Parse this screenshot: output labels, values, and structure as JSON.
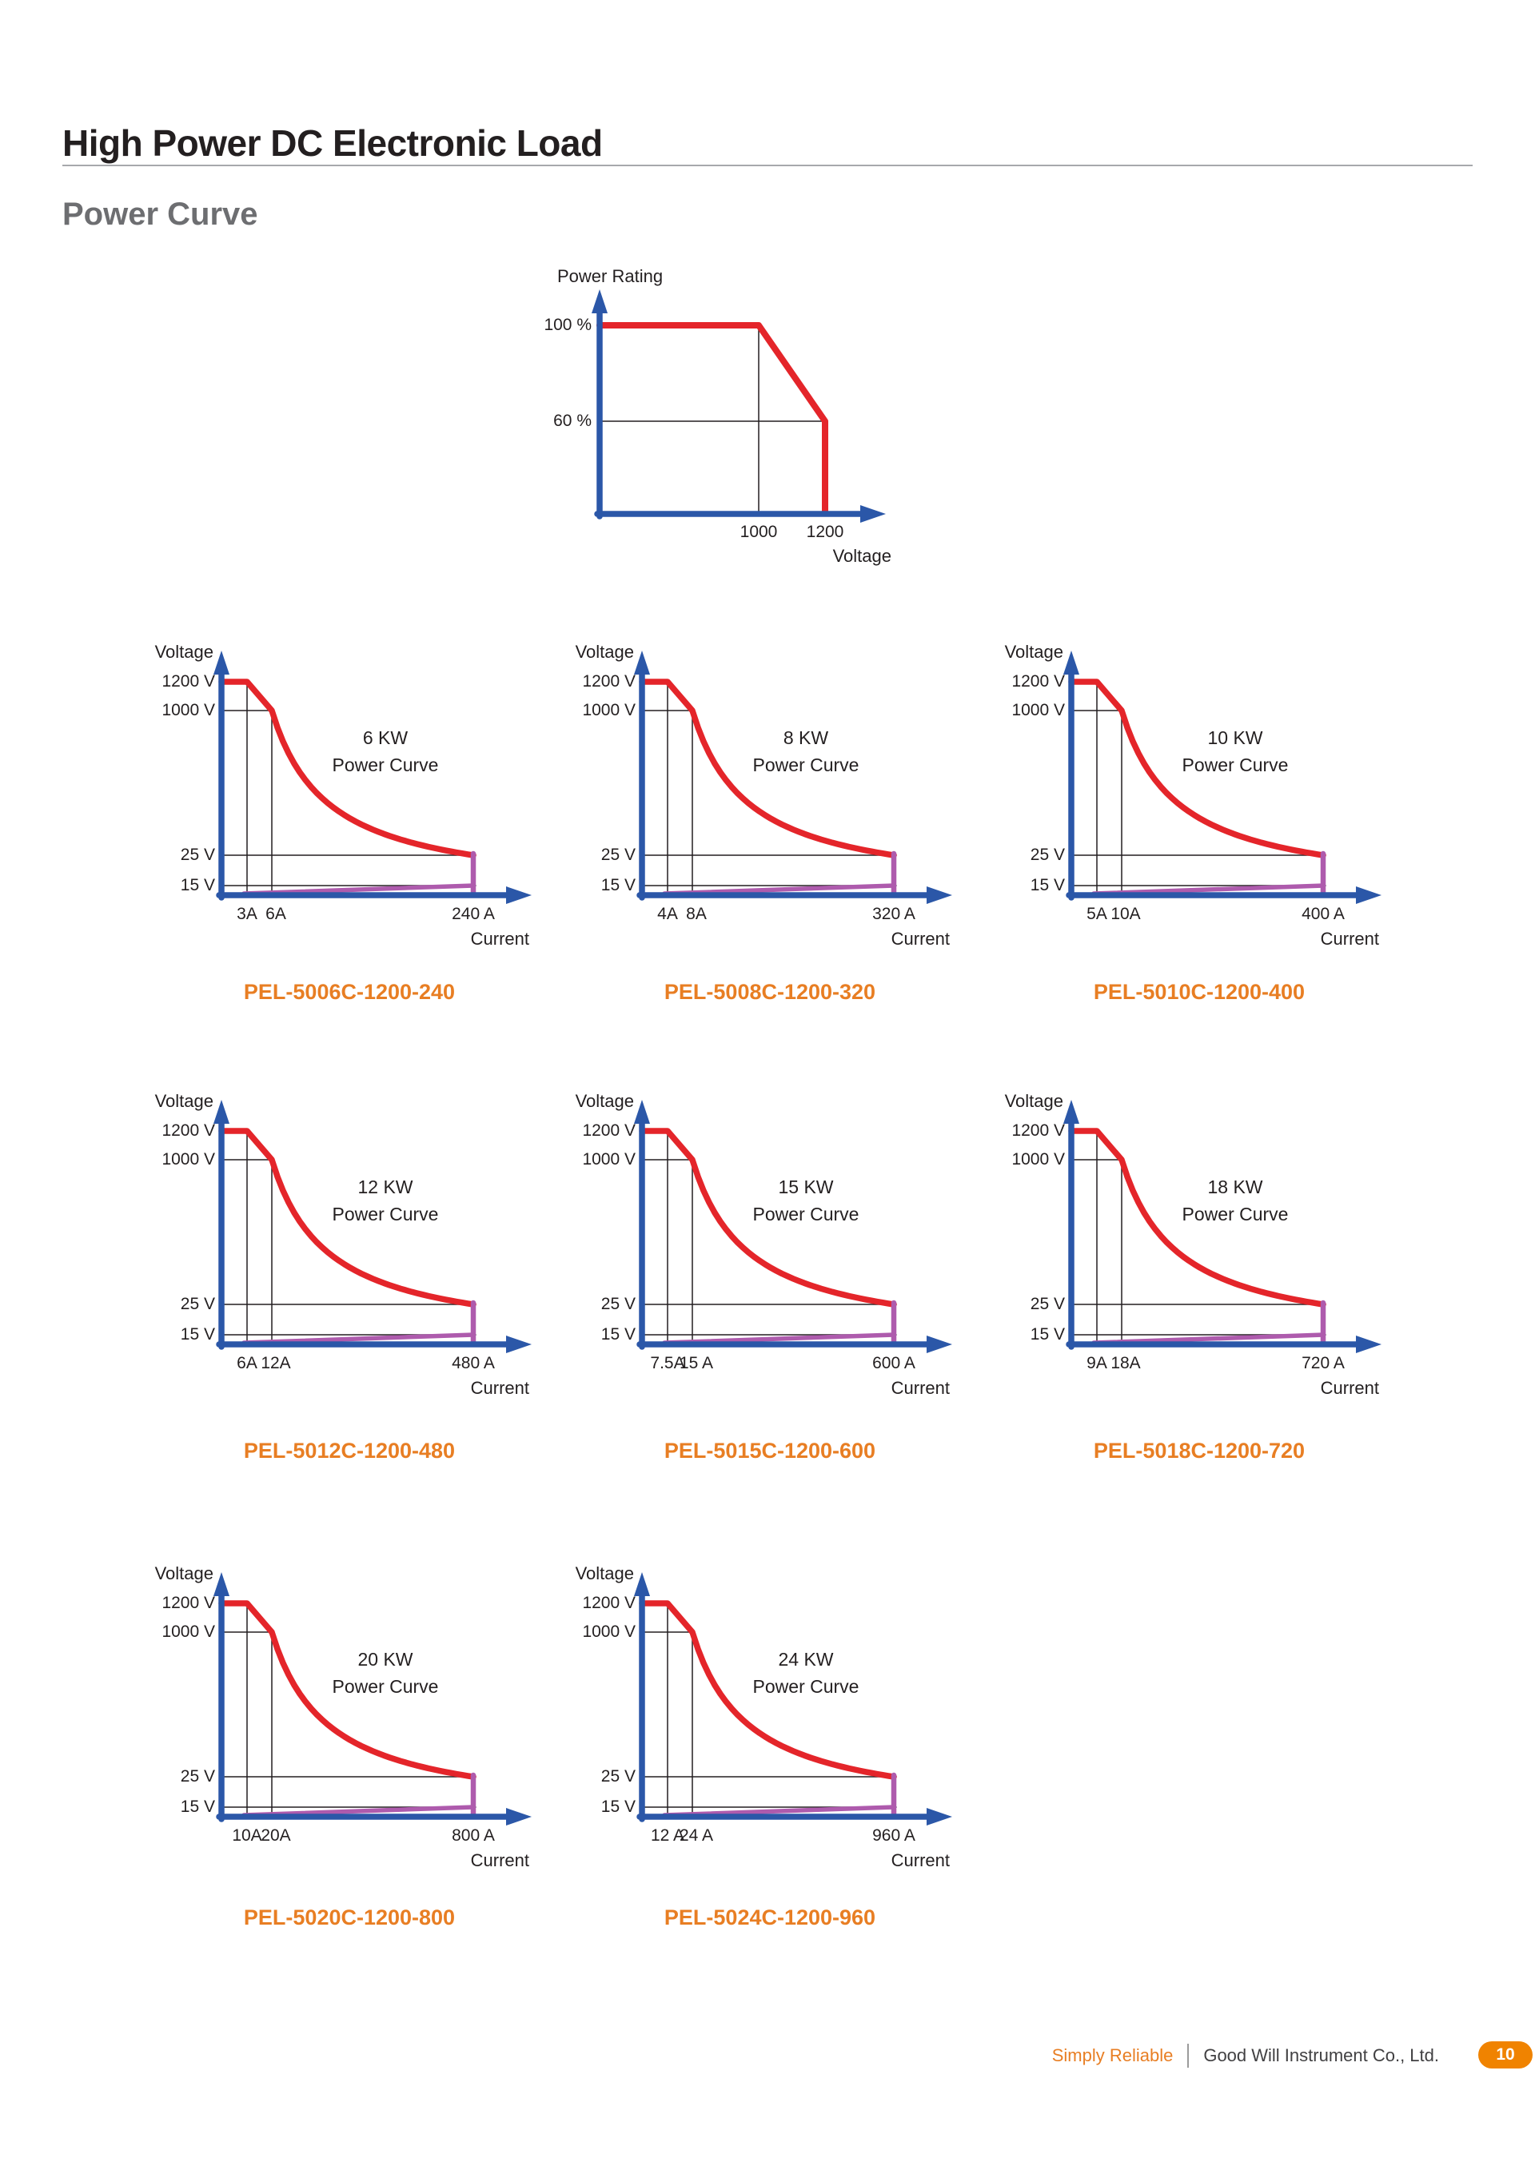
{
  "page": {
    "title": "High Power DC Electronic Load",
    "subtitle": "Power Curve"
  },
  "footer": {
    "tagline": "Simply Reliable",
    "company": "Good Will Instrument Co., Ltd.",
    "page_number": "10"
  },
  "colors": {
    "axis_blue": "#2B57A8",
    "curve_red": "#E4252A",
    "curve_purple": "#AE5BAD",
    "reference_black": "#231F20",
    "model_orange": "#E87E23",
    "badge_orange": "#F08300",
    "title_black": "#231F20",
    "subtitle_gray": "#6D6E71",
    "footer_gray": "#414042",
    "rule_gray": "#A7A9AC"
  },
  "chart_data": [
    {
      "id": "power-rating-derating",
      "type": "line",
      "ylabel": "Power Rating",
      "xlabel": "Voltage",
      "y_tick_labels": [
        "100 %",
        "60 %"
      ],
      "x_tick_labels": [
        "1000",
        "1200"
      ],
      "series": [
        {
          "name": "power-rating-vs-voltage",
          "color_key": "curve_red",
          "points_voltage_percent": [
            [
              0,
              100
            ],
            [
              1000,
              100
            ],
            [
              1200,
              60
            ],
            [
              1200,
              0
            ]
          ]
        }
      ],
      "reference_lines": [
        {
          "type": "vertical",
          "x_voltage": 1000
        },
        {
          "type": "horizontal",
          "y_percent": 60
        }
      ]
    },
    {
      "id": "pel-5006c",
      "type": "line",
      "kw_label": "6 KW",
      "chart_subtitle": "Power Curve",
      "model": "PEL-5006C-1200-240",
      "ylabel": "Voltage",
      "xlabel": "Current",
      "y_tick_labels": [
        "1200 V",
        "1000 V",
        "25 V",
        "15 V"
      ],
      "x_tick_labels": [
        "3A",
        "6A",
        "240 A"
      ],
      "red_curve_points_A_V": [
        [
          0,
          1200
        ],
        [
          3,
          1200
        ],
        [
          6,
          1000
        ],
        [
          240,
          25
        ]
      ],
      "red_curve_rule": "V = 6000 W / I from 6 A to 240 A",
      "purple_boundary_points_A_V": [
        [
          0,
          0
        ],
        [
          240,
          15
        ],
        [
          240,
          25
        ]
      ]
    },
    {
      "id": "pel-5008c",
      "type": "line",
      "kw_label": "8 KW",
      "chart_subtitle": "Power Curve",
      "model": "PEL-5008C-1200-320",
      "ylabel": "Voltage",
      "xlabel": "Current",
      "y_tick_labels": [
        "1200 V",
        "1000 V",
        "25 V",
        "15 V"
      ],
      "x_tick_labels": [
        "4A",
        "8A",
        "320 A"
      ],
      "red_curve_points_A_V": [
        [
          0,
          1200
        ],
        [
          4,
          1200
        ],
        [
          8,
          1000
        ],
        [
          320,
          25
        ]
      ],
      "red_curve_rule": "V = 8000 W / I from 8 A to 320 A",
      "purple_boundary_points_A_V": [
        [
          0,
          0
        ],
        [
          320,
          15
        ],
        [
          320,
          25
        ]
      ]
    },
    {
      "id": "pel-5010c",
      "type": "line",
      "kw_label": "10 KW",
      "chart_subtitle": "Power Curve",
      "model": "PEL-5010C-1200-400",
      "ylabel": "Voltage",
      "xlabel": "Current",
      "y_tick_labels": [
        "1200 V",
        "1000 V",
        "25 V",
        "15 V"
      ],
      "x_tick_labels": [
        "5A",
        "10A",
        "400 A"
      ],
      "red_curve_points_A_V": [
        [
          0,
          1200
        ],
        [
          5,
          1200
        ],
        [
          10,
          1000
        ],
        [
          400,
          25
        ]
      ],
      "red_curve_rule": "V = 10000 W / I from 10 A to 400 A",
      "purple_boundary_points_A_V": [
        [
          0,
          0
        ],
        [
          400,
          15
        ],
        [
          400,
          25
        ]
      ]
    },
    {
      "id": "pel-5012c",
      "type": "line",
      "kw_label": "12 KW",
      "chart_subtitle": "Power Curve",
      "model": "PEL-5012C-1200-480",
      "ylabel": "Voltage",
      "xlabel": "Current",
      "y_tick_labels": [
        "1200 V",
        "1000 V",
        "25 V",
        "15 V"
      ],
      "x_tick_labels": [
        "6A",
        "12A",
        "480 A"
      ],
      "red_curve_points_A_V": [
        [
          0,
          1200
        ],
        [
          6,
          1200
        ],
        [
          12,
          1000
        ],
        [
          480,
          25
        ]
      ],
      "red_curve_rule": "V = 12000 W / I from 12 A to 480 A",
      "purple_boundary_points_A_V": [
        [
          0,
          0
        ],
        [
          480,
          15
        ],
        [
          480,
          25
        ]
      ]
    },
    {
      "id": "pel-5015c",
      "type": "line",
      "kw_label": "15 KW",
      "chart_subtitle": "Power Curve",
      "model": "PEL-5015C-1200-600",
      "ylabel": "Voltage",
      "xlabel": "Current",
      "y_tick_labels": [
        "1200 V",
        "1000 V",
        "25 V",
        "15 V"
      ],
      "x_tick_labels": [
        "7.5A",
        "15 A",
        "600 A"
      ],
      "red_curve_points_A_V": [
        [
          0,
          1200
        ],
        [
          7.5,
          1200
        ],
        [
          15,
          1000
        ],
        [
          600,
          25
        ]
      ],
      "red_curve_rule": "V = 15000 W / I from 15 A to 600 A",
      "purple_boundary_points_A_V": [
        [
          0,
          0
        ],
        [
          600,
          15
        ],
        [
          600,
          25
        ]
      ]
    },
    {
      "id": "pel-5018c",
      "type": "line",
      "kw_label": "18 KW",
      "chart_subtitle": "Power Curve",
      "model": "PEL-5018C-1200-720",
      "ylabel": "Voltage",
      "xlabel": "Current",
      "y_tick_labels": [
        "1200 V",
        "1000 V",
        "25 V",
        "15 V"
      ],
      "x_tick_labels": [
        "9A",
        "18A",
        "720 A"
      ],
      "red_curve_points_A_V": [
        [
          0,
          1200
        ],
        [
          9,
          1200
        ],
        [
          18,
          1000
        ],
        [
          720,
          25
        ]
      ],
      "red_curve_rule": "V = 18000 W / I from 18 A to 720 A",
      "purple_boundary_points_A_V": [
        [
          0,
          0
        ],
        [
          720,
          15
        ],
        [
          720,
          25
        ]
      ]
    },
    {
      "id": "pel-5020c",
      "type": "line",
      "kw_label": "20 KW",
      "chart_subtitle": "Power Curve",
      "model": "PEL-5020C-1200-800",
      "ylabel": "Voltage",
      "xlabel": "Current",
      "y_tick_labels": [
        "1200 V",
        "1000 V",
        "25 V",
        "15 V"
      ],
      "x_tick_labels": [
        "10A",
        "20A",
        "800 A"
      ],
      "red_curve_points_A_V": [
        [
          0,
          1200
        ],
        [
          10,
          1200
        ],
        [
          20,
          1000
        ],
        [
          800,
          25
        ]
      ],
      "red_curve_rule": "V = 20000 W / I from 20 A to 800 A",
      "purple_boundary_points_A_V": [
        [
          0,
          0
        ],
        [
          800,
          15
        ],
        [
          800,
          25
        ]
      ]
    },
    {
      "id": "pel-5024c",
      "type": "line",
      "kw_label": "24 KW",
      "chart_subtitle": "Power Curve",
      "model": "PEL-5024C-1200-960",
      "ylabel": "Voltage",
      "xlabel": "Current",
      "y_tick_labels": [
        "1200 V",
        "1000 V",
        "25 V",
        "15 V"
      ],
      "x_tick_labels": [
        "12 A",
        "24 A",
        "960 A"
      ],
      "red_curve_points_A_V": [
        [
          0,
          1200
        ],
        [
          12,
          1200
        ],
        [
          24,
          1000
        ],
        [
          960,
          25
        ]
      ],
      "red_curve_rule": "V = 24000 W / I from 24 A to 960 A",
      "purple_boundary_points_A_V": [
        [
          0,
          0
        ],
        [
          960,
          15
        ],
        [
          960,
          25
        ]
      ]
    }
  ]
}
